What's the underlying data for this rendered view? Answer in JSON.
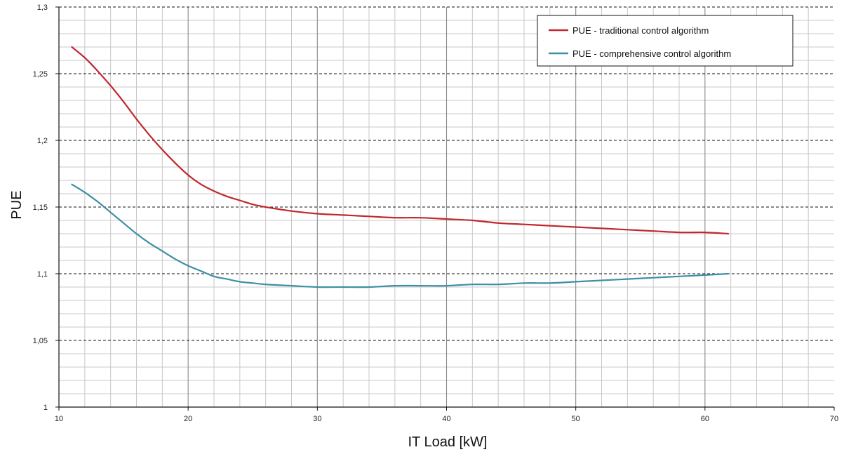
{
  "chart_data": {
    "type": "line",
    "title": "",
    "xlabel": "IT Load [kW]",
    "ylabel": "PUE",
    "xlim": [
      10,
      70
    ],
    "ylim": [
      1,
      1.3
    ],
    "x_ticks": [
      10,
      20,
      30,
      40,
      50,
      60,
      70
    ],
    "x_tick_labels": [
      "10",
      "20",
      "30",
      "40",
      "50",
      "60",
      "70"
    ],
    "y_ticks": [
      1,
      1.05,
      1.1,
      1.15,
      1.2,
      1.25,
      1.3
    ],
    "y_tick_labels": [
      "1",
      "1,05",
      "1,1",
      "1,15",
      "1,2",
      "1,25",
      "1,3"
    ],
    "grid": true,
    "legend_position": "top-right",
    "series": [
      {
        "name": "PUE - traditional control algorithm",
        "color": "#c0282d",
        "x": [
          11,
          12,
          13,
          14,
          15,
          16,
          17,
          18,
          19,
          20,
          21,
          22,
          23,
          24,
          25,
          26,
          28,
          30,
          32,
          34,
          36,
          38,
          40,
          42,
          44,
          46,
          48,
          50,
          52,
          54,
          56,
          58,
          60,
          61.8
        ],
        "y": [
          1.27,
          1.262,
          1.252,
          1.241,
          1.229,
          1.216,
          1.204,
          1.193,
          1.183,
          1.174,
          1.167,
          1.162,
          1.158,
          1.155,
          1.152,
          1.15,
          1.147,
          1.145,
          1.144,
          1.143,
          1.142,
          1.142,
          1.141,
          1.14,
          1.138,
          1.137,
          1.136,
          1.135,
          1.134,
          1.133,
          1.132,
          1.131,
          1.131,
          1.13
        ]
      },
      {
        "name": "PUE - comprehensive control algorithm",
        "color": "#3f8fa4",
        "x": [
          11,
          12,
          13,
          14,
          15,
          16,
          17,
          18,
          19,
          20,
          21,
          22,
          23,
          24,
          25,
          26,
          28,
          30,
          32,
          34,
          36,
          38,
          40,
          42,
          44,
          46,
          48,
          50,
          52,
          54,
          56,
          58,
          60,
          61.8
        ],
        "y": [
          1.167,
          1.161,
          1.154,
          1.146,
          1.138,
          1.13,
          1.123,
          1.117,
          1.111,
          1.106,
          1.102,
          1.098,
          1.096,
          1.094,
          1.093,
          1.092,
          1.091,
          1.09,
          1.09,
          1.09,
          1.091,
          1.091,
          1.091,
          1.092,
          1.092,
          1.093,
          1.093,
          1.094,
          1.095,
          1.096,
          1.097,
          1.098,
          1.099,
          1.1
        ]
      }
    ]
  }
}
